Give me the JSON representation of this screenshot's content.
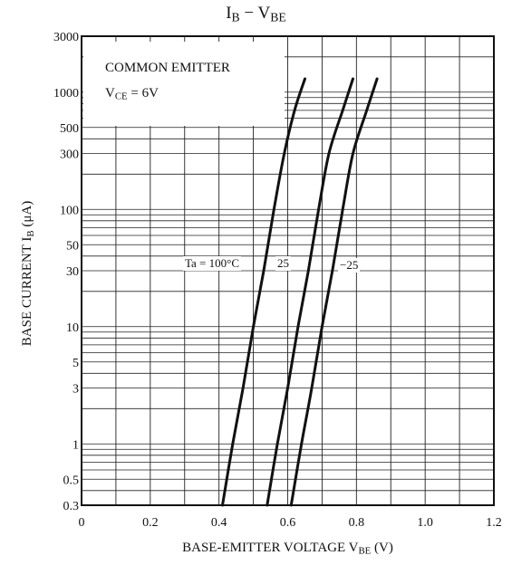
{
  "chart_data": {
    "type": "line",
    "title": {
      "main": "I",
      "main_sub": "B",
      "sep": " − ",
      "second": "V",
      "second_sub": "BE"
    },
    "xlabel": {
      "text": "BASE-EMITTER VOLTAGE  V",
      "sub": "BE",
      "unit": "  (V)"
    },
    "ylabel": {
      "text": "BASE CURRENT  I",
      "sub": "B",
      "unit": "  (μA)"
    },
    "xlim": [
      0,
      1.2
    ],
    "ylim": [
      0.3,
      3000
    ],
    "yscale": "log",
    "x_ticks": [
      {
        "v": 0,
        "label": "0"
      },
      {
        "v": 0.2,
        "label": "0.2"
      },
      {
        "v": 0.4,
        "label": "0.4"
      },
      {
        "v": 0.6,
        "label": "0.6"
      },
      {
        "v": 0.8,
        "label": "0.8"
      },
      {
        "v": 1.0,
        "label": "1.0"
      },
      {
        "v": 1.2,
        "label": "1.2"
      }
    ],
    "y_ticks": [
      {
        "v": 0.3,
        "label": "0.3"
      },
      {
        "v": 0.5,
        "label": "0.5"
      },
      {
        "v": 1,
        "label": "1"
      },
      {
        "v": 3,
        "label": "3"
      },
      {
        "v": 5,
        "label": "5"
      },
      {
        "v": 10,
        "label": "10"
      },
      {
        "v": 30,
        "label": "30"
      },
      {
        "v": 50,
        "label": "50"
      },
      {
        "v": 100,
        "label": "100"
      },
      {
        "v": 300,
        "label": "300"
      },
      {
        "v": 500,
        "label": "500"
      },
      {
        "v": 1000,
        "label": "1000"
      },
      {
        "v": 3000,
        "label": "3000"
      }
    ],
    "grid": true,
    "conditions": {
      "line1": "COMMON EMITTER",
      "line2_main": "V",
      "line2_sub": "CE",
      "line2_rest": " = 6V"
    },
    "series": [
      {
        "name": "Ta = 100°C",
        "x": [
          0.41,
          0.44,
          0.47,
          0.5,
          0.53,
          0.56,
          0.59,
          0.62,
          0.65
        ],
        "y": [
          0.3,
          1,
          3,
          10,
          30,
          100,
          300,
          700,
          1300
        ]
      },
      {
        "name": "25",
        "x": [
          0.54,
          0.57,
          0.6,
          0.63,
          0.66,
          0.69,
          0.72,
          0.76,
          0.79
        ],
        "y": [
          0.3,
          1,
          3,
          10,
          30,
          100,
          300,
          700,
          1300
        ]
      },
      {
        "name": "−25",
        "x": [
          0.61,
          0.64,
          0.67,
          0.7,
          0.73,
          0.76,
          0.79,
          0.83,
          0.86
        ],
        "y": [
          0.3,
          1,
          3,
          10,
          30,
          100,
          300,
          700,
          1300
        ]
      }
    ]
  }
}
